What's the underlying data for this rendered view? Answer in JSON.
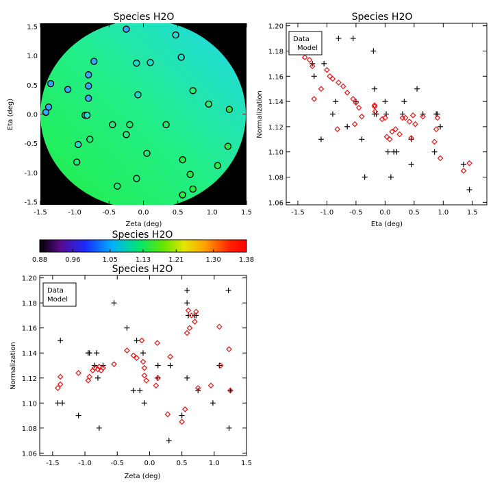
{
  "chart_data": [
    {
      "type": "heatmap",
      "title": "Species H2O",
      "xlabel": "Zeta (deg)",
      "ylabel": "Eta (deg)",
      "xlim": [
        -1.5,
        1.5
      ],
      "ylim": [
        -1.55,
        1.55
      ],
      "x_ticks": [
        "-1.5",
        "-1.0",
        "-0.5",
        "0.0",
        "0.5",
        "1.0",
        "1.5"
      ],
      "y_ticks": [
        "-1.5",
        "-1.0",
        "-0.5",
        "0.0",
        "0.5",
        "1.0",
        "1.5"
      ],
      "field": "circular map, value increases toward lower-left (green) and decreases toward upper-right (cyan)",
      "points": [
        [
          -0.25,
          1.45
        ],
        [
          0.47,
          1.35
        ],
        [
          -0.1,
          0.87
        ],
        [
          0.1,
          0.88
        ],
        [
          -0.72,
          0.9
        ],
        [
          0.55,
          0.97
        ],
        [
          -1.35,
          0.52
        ],
        [
          -0.8,
          0.67
        ],
        [
          -1.1,
          0.42
        ],
        [
          -0.8,
          0.48
        ],
        [
          0.72,
          0.4
        ],
        [
          -0.08,
          0.33
        ],
        [
          -0.8,
          0.27
        ],
        [
          -1.38,
          0.12
        ],
        [
          -1.42,
          0.03
        ],
        [
          0.95,
          0.17
        ],
        [
          1.25,
          0.08
        ],
        [
          -0.85,
          -0.02
        ],
        [
          -0.82,
          -0.02
        ],
        [
          -0.45,
          -0.18
        ],
        [
          -0.2,
          -0.18
        ],
        [
          0.33,
          -0.18
        ],
        [
          -0.78,
          -0.43
        ],
        [
          -0.25,
          -0.35
        ],
        [
          -0.95,
          -0.52
        ],
        [
          0.05,
          -0.67
        ],
        [
          1.23,
          -0.55
        ],
        [
          -0.97,
          -0.82
        ],
        [
          0.57,
          -0.78
        ],
        [
          1.08,
          -0.88
        ],
        [
          0.68,
          -1.03
        ],
        [
          -0.1,
          -1.1
        ],
        [
          -0.38,
          -1.23
        ],
        [
          0.72,
          -1.28
        ],
        [
          0.57,
          -1.38
        ]
      ],
      "colors": {
        "background": "#000000",
        "high": "#22ee44",
        "low": "#22ddee",
        "marker_edge": "#000000"
      }
    },
    {
      "type": "scatter",
      "title": "Species H2O",
      "xlabel": "Eta (deg)",
      "ylabel": "Normalization",
      "xlim": [
        -1.7,
        1.75
      ],
      "ylim": [
        1.058,
        1.202
      ],
      "x_ticks": [
        "-1.5",
        "-1.0",
        "-0.5",
        "0.0",
        "0.5",
        "1.0",
        "1.5"
      ],
      "y_ticks": [
        "1.06",
        "1.08",
        "1.10",
        "1.12",
        "1.14",
        "1.16",
        "1.18",
        "1.20"
      ],
      "legend": {
        "position": "top-left",
        "items": [
          "Data",
          "Model"
        ]
      },
      "series": [
        {
          "name": "Data",
          "color": "#000000",
          "marker": "plus",
          "points": [
            [
              -1.35,
              1.18
            ],
            [
              -1.25,
              1.17
            ],
            [
              -1.22,
              1.16
            ],
            [
              -1.1,
              1.11
            ],
            [
              -1.05,
              1.17
            ],
            [
              -0.9,
              1.13
            ],
            [
              -0.85,
              1.14
            ],
            [
              -0.8,
              1.19
            ],
            [
              -0.65,
              1.12
            ],
            [
              -0.55,
              1.19
            ],
            [
              -0.5,
              1.14
            ],
            [
              -0.4,
              1.11
            ],
            [
              -0.35,
              1.08
            ],
            [
              -0.2,
              1.18
            ],
            [
              -0.18,
              1.15
            ],
            [
              -0.15,
              1.13
            ],
            [
              -0.18,
              1.13
            ],
            [
              0.0,
              1.14
            ],
            [
              0.02,
              1.13
            ],
            [
              0.05,
              1.1
            ],
            [
              0.1,
              1.08
            ],
            [
              0.15,
              1.1
            ],
            [
              0.2,
              1.1
            ],
            [
              0.3,
              1.13
            ],
            [
              0.33,
              1.14
            ],
            [
              0.45,
              1.09
            ],
            [
              0.45,
              1.11
            ],
            [
              0.55,
              1.15
            ],
            [
              0.65,
              1.13
            ],
            [
              0.85,
              1.1
            ],
            [
              0.88,
              1.13
            ],
            [
              0.9,
              1.13
            ],
            [
              0.95,
              1.12
            ],
            [
              1.35,
              1.09
            ],
            [
              1.45,
              1.07
            ]
          ]
        },
        {
          "name": "Model",
          "color": "#ee1111",
          "marker": "diamond",
          "points": [
            [
              -1.38,
              1.175
            ],
            [
              -1.3,
              1.173
            ],
            [
              -1.25,
              1.168
            ],
            [
              -1.22,
              1.142
            ],
            [
              -1.1,
              1.15
            ],
            [
              -1.0,
              1.165
            ],
            [
              -0.95,
              1.16
            ],
            [
              -0.9,
              1.158
            ],
            [
              -0.82,
              1.118
            ],
            [
              -0.8,
              1.155
            ],
            [
              -0.72,
              1.152
            ],
            [
              -0.65,
              1.147
            ],
            [
              -0.55,
              1.142
            ],
            [
              -0.52,
              1.122
            ],
            [
              -0.5,
              1.139
            ],
            [
              -0.45,
              1.135
            ],
            [
              -0.4,
              1.128
            ],
            [
              -0.18,
              1.137
            ],
            [
              -0.18,
              1.136
            ],
            [
              -0.17,
              1.132
            ],
            [
              -0.05,
              1.126
            ],
            [
              0.0,
              1.127
            ],
            [
              0.03,
              1.112
            ],
            [
              0.08,
              1.11
            ],
            [
              0.12,
              1.116
            ],
            [
              0.18,
              1.118
            ],
            [
              0.25,
              1.114
            ],
            [
              0.3,
              1.127
            ],
            [
              0.35,
              1.127
            ],
            [
              0.42,
              1.124
            ],
            [
              0.45,
              1.111
            ],
            [
              0.48,
              1.129
            ],
            [
              0.52,
              1.122
            ],
            [
              0.65,
              1.128
            ],
            [
              0.85,
              1.108
            ],
            [
              0.88,
              1.118
            ],
            [
              0.9,
              1.127
            ],
            [
              0.95,
              1.095
            ],
            [
              1.35,
              1.085
            ],
            [
              1.45,
              1.091
            ]
          ]
        }
      ]
    },
    {
      "type": "colorbar",
      "title": "Species H2O",
      "ticks": [
        "0.88",
        "0.96",
        "1.05",
        "1.13",
        "1.21",
        "1.30",
        "1.38"
      ],
      "range": [
        0.88,
        1.38
      ],
      "colors": [
        "#000000",
        "#5a0a8c",
        "#1a2aff",
        "#00b0ff",
        "#00e66e",
        "#66e600",
        "#e6e600",
        "#ffa000",
        "#ff2000",
        "#ff0000"
      ]
    },
    {
      "type": "scatter",
      "title": "Species H2O",
      "xlabel": "Zeta (deg)",
      "ylabel": "Normalization",
      "xlim": [
        -1.7,
        1.5
      ],
      "ylim": [
        1.058,
        1.202
      ],
      "x_ticks": [
        "-1.5",
        "-1.0",
        "-0.5",
        "0.0",
        "0.5",
        "1.0",
        "1.5"
      ],
      "y_ticks": [
        "1.06",
        "1.08",
        "1.10",
        "1.12",
        "1.14",
        "1.16",
        "1.18",
        "1.20"
      ],
      "legend": {
        "position": "top-left",
        "items": [
          "Data",
          "Model"
        ]
      },
      "series": [
        {
          "name": "Data",
          "color": "#000000",
          "marker": "plus",
          "points": [
            [
              -1.42,
              1.1
            ],
            [
              -1.38,
              1.15
            ],
            [
              -1.35,
              1.1
            ],
            [
              -1.1,
              1.09
            ],
            [
              -0.95,
              1.14
            ],
            [
              -0.93,
              1.14
            ],
            [
              -0.85,
              1.13
            ],
            [
              -0.82,
              1.14
            ],
            [
              -0.8,
              1.12
            ],
            [
              -0.78,
              1.08
            ],
            [
              -0.72,
              1.13
            ],
            [
              -0.55,
              1.18
            ],
            [
              -0.35,
              1.16
            ],
            [
              -0.25,
              1.11
            ],
            [
              -0.2,
              1.15
            ],
            [
              -0.15,
              1.11
            ],
            [
              -0.1,
              1.14
            ],
            [
              -0.08,
              1.1
            ],
            [
              0.12,
              1.12
            ],
            [
              0.13,
              1.13
            ],
            [
              0.3,
              1.07
            ],
            [
              0.32,
              1.13
            ],
            [
              0.5,
              1.09
            ],
            [
              0.58,
              1.19
            ],
            [
              0.58,
              1.18
            ],
            [
              0.58,
              1.12
            ],
            [
              0.6,
              1.17
            ],
            [
              0.7,
              1.17
            ],
            [
              0.72,
              1.17
            ],
            [
              0.75,
              1.11
            ],
            [
              0.98,
              1.1
            ],
            [
              1.08,
              1.13
            ],
            [
              1.22,
              1.19
            ],
            [
              1.23,
              1.08
            ],
            [
              1.25,
              1.11
            ]
          ]
        },
        {
          "name": "Model",
          "color": "#ee1111",
          "marker": "diamond",
          "points": [
            [
              -1.42,
              1.112
            ],
            [
              -1.38,
              1.115
            ],
            [
              -1.38,
              1.121
            ],
            [
              -1.1,
              1.124
            ],
            [
              -0.95,
              1.118
            ],
            [
              -0.93,
              1.121
            ],
            [
              -0.88,
              1.126
            ],
            [
              -0.85,
              1.128
            ],
            [
              -0.8,
              1.127
            ],
            [
              -0.78,
              1.129
            ],
            [
              -0.75,
              1.126
            ],
            [
              -0.72,
              1.128
            ],
            [
              -0.55,
              1.131
            ],
            [
              -0.35,
              1.142
            ],
            [
              -0.25,
              1.138
            ],
            [
              -0.2,
              1.136
            ],
            [
              -0.12,
              1.15
            ],
            [
              -0.1,
              1.133
            ],
            [
              -0.08,
              1.128
            ],
            [
              -0.05,
              1.118
            ],
            [
              -0.08,
              1.122
            ],
            [
              0.1,
              1.114
            ],
            [
              0.12,
              1.148
            ],
            [
              0.13,
              1.12
            ],
            [
              0.28,
              1.091
            ],
            [
              0.32,
              1.137
            ],
            [
              0.5,
              1.085
            ],
            [
              0.55,
              1.095
            ],
            [
              0.58,
              1.156
            ],
            [
              0.6,
              1.174
            ],
            [
              0.62,
              1.16
            ],
            [
              0.65,
              1.17
            ],
            [
              0.7,
              1.165
            ],
            [
              0.72,
              1.173
            ],
            [
              0.75,
              1.112
            ],
            [
              0.95,
              1.114
            ],
            [
              1.08,
              1.161
            ],
            [
              1.1,
              1.13
            ],
            [
              1.23,
              1.143
            ],
            [
              1.25,
              1.11
            ]
          ]
        }
      ]
    }
  ]
}
